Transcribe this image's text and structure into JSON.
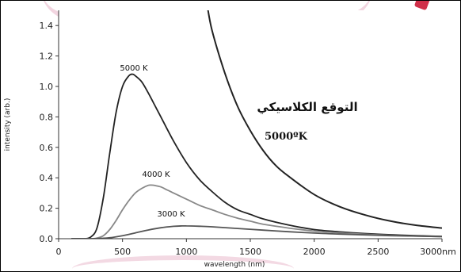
{
  "chart_data": {
    "type": "line",
    "xlabel": "wavelength (nm)",
    "ylabel": "intensity (arb.)",
    "xlim": [
      0,
      3000
    ],
    "ylim": [
      0,
      1.5
    ],
    "xticks": [
      0,
      500,
      1000,
      1500,
      2000,
      2500,
      3000
    ],
    "xtick_labels": [
      "0",
      "500",
      "1000",
      "1500",
      "2000",
      "2500",
      "3000nm"
    ],
    "yticks": [
      0.0,
      0.2,
      0.4,
      0.6,
      0.8,
      1.0,
      1.2,
      1.4
    ],
    "ytick_labels": [
      "0.0",
      "0.2",
      "0.4",
      "0.6",
      "0.8",
      "1.0",
      "1.2",
      "1.4"
    ],
    "series": [
      {
        "name": "5000 K",
        "color": "#222222",
        "x": [
          100,
          150,
          200,
          250,
          300,
          350,
          400,
          450,
          500,
          550,
          580,
          600,
          650,
          700,
          750,
          800,
          900,
          1000,
          1100,
          1200,
          1300,
          1400,
          1500,
          1600,
          1800,
          2000,
          2200,
          2400,
          2600,
          2800,
          3000
        ],
        "y": [
          0.0,
          0.0,
          0.0,
          0.01,
          0.07,
          0.27,
          0.56,
          0.83,
          1.0,
          1.07,
          1.08,
          1.07,
          1.03,
          0.96,
          0.88,
          0.8,
          0.64,
          0.5,
          0.39,
          0.31,
          0.24,
          0.19,
          0.16,
          0.13,
          0.09,
          0.06,
          0.045,
          0.034,
          0.026,
          0.02,
          0.015
        ]
      },
      {
        "name": "4000 K",
        "color": "#888888",
        "x": [
          100,
          200,
          250,
          300,
          350,
          400,
          450,
          500,
          550,
          600,
          650,
          700,
          725,
          750,
          800,
          850,
          900,
          1000,
          1100,
          1200,
          1300,
          1400,
          1500,
          1600,
          1800,
          2000,
          2200,
          2400,
          2600,
          2800,
          3000
        ],
        "y": [
          0.0,
          0.0,
          0.0,
          0.004,
          0.02,
          0.06,
          0.12,
          0.19,
          0.25,
          0.3,
          0.33,
          0.35,
          0.352,
          0.35,
          0.34,
          0.32,
          0.3,
          0.26,
          0.22,
          0.19,
          0.16,
          0.135,
          0.115,
          0.095,
          0.07,
          0.05,
          0.038,
          0.029,
          0.022,
          0.017,
          0.013
        ]
      },
      {
        "name": "3000 K",
        "color": "#555555",
        "x": [
          100,
          250,
          300,
          400,
          500,
          600,
          700,
          800,
          900,
          966,
          1000,
          1100,
          1200,
          1400,
          1600,
          1800,
          2000,
          2200,
          2400,
          2600,
          2800,
          3000
        ],
        "y": [
          0.0,
          0.0,
          0.001,
          0.006,
          0.02,
          0.038,
          0.057,
          0.072,
          0.081,
          0.084,
          0.084,
          0.082,
          0.078,
          0.067,
          0.056,
          0.046,
          0.037,
          0.03,
          0.025,
          0.02,
          0.017,
          0.014
        ]
      },
      {
        "name": "التوقع الكلاسيكي 5000ºK",
        "color": "#222222",
        "x": [
          1160,
          1200,
          1300,
          1400,
          1500,
          1600,
          1700,
          1800,
          2000,
          2200,
          2400,
          2600,
          2800,
          3000
        ],
        "y": [
          1.55,
          1.37,
          1.09,
          0.87,
          0.71,
          0.58,
          0.48,
          0.41,
          0.29,
          0.21,
          0.155,
          0.115,
          0.088,
          0.07
        ]
      }
    ],
    "annotations": [
      "5000 K",
      "4000 K",
      "3000 K",
      "التوقع الكلاسيكي",
      "5000ºK"
    ]
  }
}
